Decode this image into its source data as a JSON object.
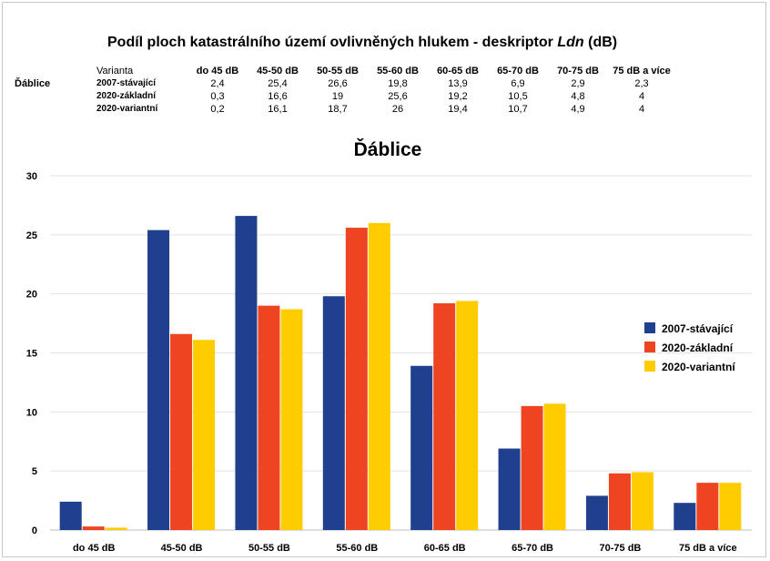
{
  "page_title": "Podíl ploch katastrálního území ovlivněných hlukem - deskriptor",
  "page_title_italic": "Ldn",
  "page_title_unit": "(dB)",
  "table": {
    "location": "Ďáblice",
    "variant_header": "Varianta",
    "columns": [
      "do 45 dB",
      "45-50 dB",
      "50-55 dB",
      "55-60 dB",
      "60-65 dB",
      "65-70 dB",
      "70-75 dB",
      "75 dB a více"
    ],
    "rows": [
      {
        "variant": "2007-stávající",
        "values": [
          "2,4",
          "25,4",
          "26,6",
          "19,8",
          "13,9",
          "6,9",
          "2,9",
          "2,3"
        ]
      },
      {
        "variant": "2020-základní",
        "values": [
          "0,3",
          "16,6",
          "19",
          "25,6",
          "19,2",
          "10,5",
          "4,8",
          "4"
        ]
      },
      {
        "variant": "2020-variantní",
        "values": [
          "0,2",
          "16,1",
          "18,7",
          "26",
          "19,4",
          "10,7",
          "4,9",
          "4"
        ]
      }
    ]
  },
  "chart_data": {
    "type": "bar",
    "title": "Ďáblice",
    "xlabel": "",
    "ylabel": "",
    "categories": [
      "do 45 dB",
      "45-50 dB",
      "50-55 dB",
      "55-60 dB",
      "60-65 dB",
      "65-70 dB",
      "70-75 dB",
      "75 dB a více"
    ],
    "series": [
      {
        "name": "2007-stávající",
        "color": "#1f3f8f",
        "values": [
          2.4,
          25.4,
          26.6,
          19.8,
          13.9,
          6.9,
          2.9,
          2.3
        ]
      },
      {
        "name": "2020-základní",
        "color": "#ee4422",
        "values": [
          0.3,
          16.6,
          19,
          25.6,
          19.2,
          10.5,
          4.8,
          4
        ]
      },
      {
        "name": "2020-variantní",
        "color": "#ffcc00",
        "values": [
          0.2,
          16.1,
          18.7,
          26,
          19.4,
          10.7,
          4.9,
          4
        ]
      }
    ],
    "ylim": [
      0,
      30
    ],
    "yticks": [
      0,
      5,
      10,
      15,
      20,
      25,
      30
    ],
    "grid": true,
    "legend_position": "right"
  }
}
